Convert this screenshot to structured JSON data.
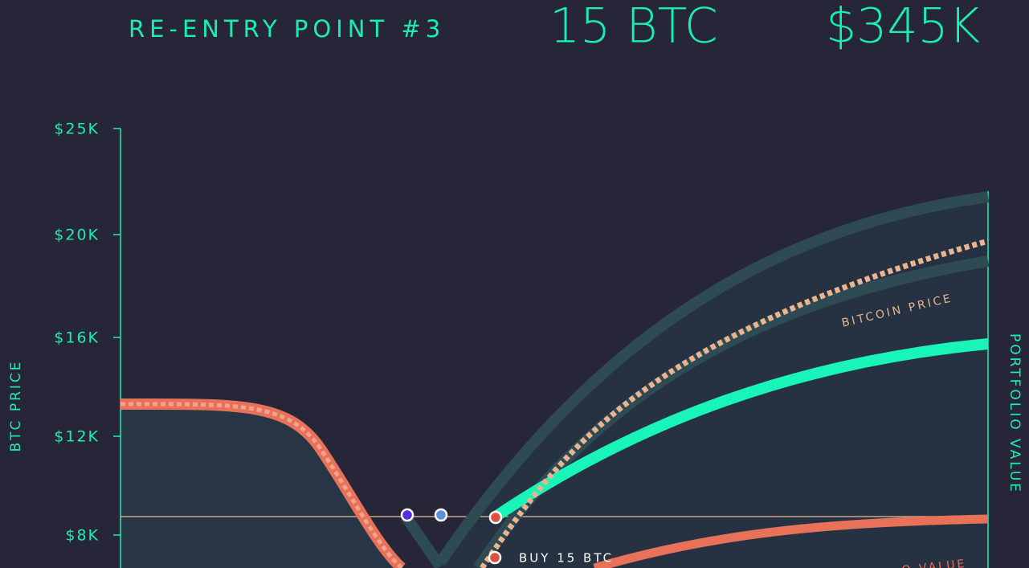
{
  "header": {
    "title": "RE-ENTRY POINT #3",
    "amount": "15 BTC",
    "value": "$345K"
  },
  "axes": {
    "left_label": "BTC PRICE",
    "right_label": "PORTFOLIO VALUE",
    "left_ticks": [
      "$25K",
      "$20K",
      "$16K",
      "$12K",
      "$8K"
    ]
  },
  "annotations": {
    "bitcoin_price": "BITCOIN PRICE",
    "buy": "BUY 15 BTC",
    "portfolio_value": "O VALUE"
  }
}
